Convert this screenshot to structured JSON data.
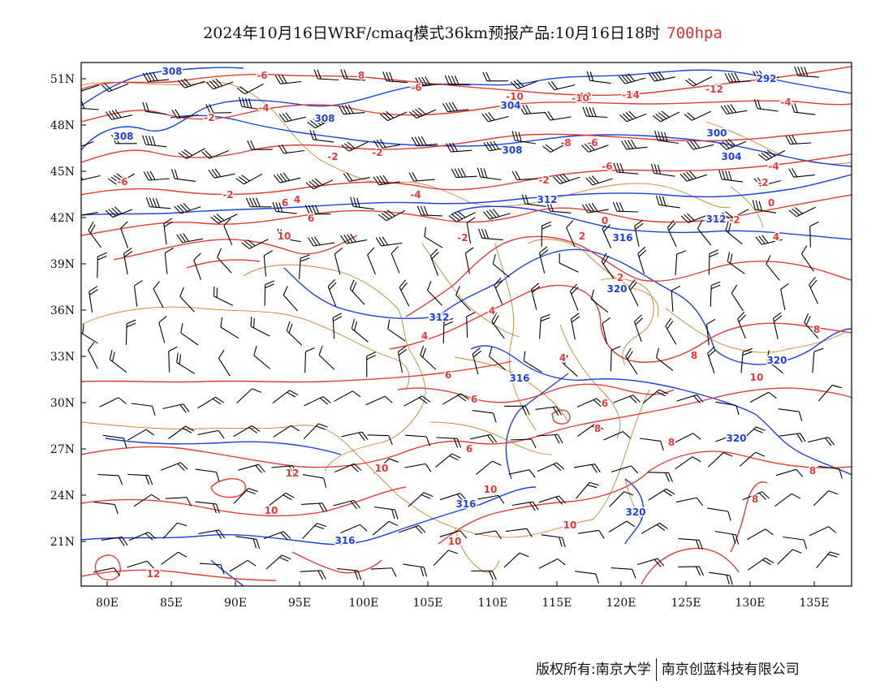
{
  "title": {
    "main": "2024年10月16日WRF/cmaq模式36km预报产品:10月16日18时",
    "level": "700hpa"
  },
  "axes": {
    "lat_labels": [
      "51N",
      "48N",
      "45N",
      "42N",
      "39N",
      "36N",
      "33N",
      "30N",
      "27N",
      "24N",
      "21N"
    ],
    "lon_labels": [
      "80E",
      "85E",
      "90E",
      "95E",
      "100E",
      "105E",
      "110E",
      "115E",
      "120E",
      "125E",
      "130E",
      "135E"
    ]
  },
  "colors": {
    "temperature": "#e03c3c",
    "geopotential": "#2040e0",
    "boundary": "#d08030",
    "wind": "#000000",
    "level": "#e03030"
  },
  "temperature_labels": [
    "-6",
    "8",
    "-6",
    "-10",
    "-12",
    "-14",
    "-12",
    "-4",
    "-2",
    "-4",
    "-6",
    "-10",
    "-6",
    "-8",
    "-6",
    "-4",
    "-2",
    "-2",
    "-4",
    "-2",
    "-2",
    "-2",
    "0",
    "4",
    "6",
    "6",
    "10",
    "-2",
    "0",
    "2",
    "-2",
    "2",
    "4",
    "4",
    "4",
    "6",
    "4",
    "6",
    "6",
    "8",
    "8",
    "8",
    "10",
    "6",
    "12",
    "10",
    "10",
    "8",
    "8",
    "10",
    "10",
    "10",
    "12",
    "8"
  ],
  "geopotential_labels": [
    "308",
    "304",
    "292",
    "300",
    "304",
    "308",
    "308",
    "308",
    "312",
    "312",
    "316",
    "312",
    "320",
    "316",
    "320",
    "316",
    "320",
    "316",
    "320"
  ],
  "footer": {
    "copyright": "版权所有:南京大学",
    "company": "南京创蓝科技有限公司"
  }
}
